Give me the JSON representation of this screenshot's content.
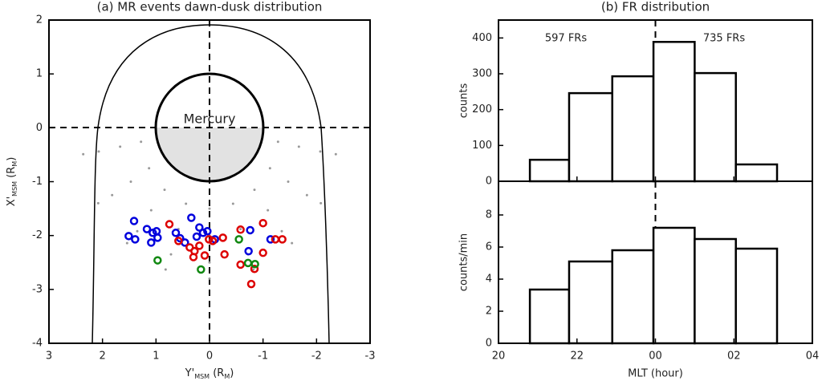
{
  "chart_data": [
    {
      "type": "scatter",
      "title": "(a) MR events dawn-dusk distribution",
      "xlabel": [
        "Y'",
        "MSM",
        " (R",
        "M",
        ")"
      ],
      "ylabel": [
        "X'",
        "MSM",
        " (R",
        "M",
        ")"
      ],
      "annotation": "Mercury",
      "xlim": [
        3,
        -3
      ],
      "xticks": [
        3,
        2,
        1,
        0,
        -1,
        -2,
        -3
      ],
      "ylim": [
        -4,
        2
      ],
      "yticks": [
        -4,
        -3,
        -2,
        -1,
        0,
        1,
        2
      ],
      "series": [
        {
          "color": "#999999",
          "marker": "dot",
          "x": [
            -1.28,
            -1.13,
            -0.84,
            -0.44,
            0,
            0.44,
            0.84,
            1.13,
            1.28,
            -1.67,
            -1.47,
            -1.09,
            -0.58,
            0,
            0.58,
            1.09,
            1.47,
            1.67,
            -2.07,
            -1.82,
            -1.35,
            -0.72,
            0,
            0.72,
            1.35,
            1.82,
            2.07,
            -2.36,
            -2.08,
            -1.54,
            -0.82,
            0,
            0.82,
            1.54,
            2.08,
            2.36
          ],
          "values": [
            -0.26,
            -0.75,
            -1.15,
            -1.41,
            -1.5,
            -1.41,
            -1.15,
            -0.75,
            -0.26,
            -0.35,
            -1.0,
            -1.53,
            -1.88,
            -2.0,
            -1.88,
            -1.53,
            -1.0,
            -0.35,
            -0.44,
            -1.25,
            -1.92,
            -2.35,
            -2.5,
            -2.35,
            -1.92,
            -1.25,
            -0.44,
            -0.49,
            -1.4,
            -2.14,
            -2.63,
            -2.8,
            -2.63,
            -2.14,
            -1.4,
            -0.49
          ]
        },
        {
          "color": "#0000dd",
          "marker": "ring",
          "x": [
            1.41,
            1.51,
            1.39,
            1.17,
            1.06,
            1.09,
            0.99,
            0.97,
            0.63,
            0.55,
            0.46,
            0.34,
            0.24,
            0.19,
            0.12,
            0.04,
            -0.1,
            -0.76,
            -0.73,
            -1.14
          ],
          "values": [
            -1.73,
            -2.01,
            -2.07,
            -1.88,
            -1.95,
            -2.13,
            -1.92,
            -2.04,
            -1.95,
            -2.05,
            -2.13,
            -1.67,
            -2.02,
            -1.85,
            -1.95,
            -1.92,
            -2.07,
            -1.9,
            -2.29,
            -2.07
          ]
        },
        {
          "color": "#dd0000",
          "marker": "ring",
          "x": [
            0.75,
            0.58,
            0.37,
            0.3,
            0.28,
            0.19,
            0.09,
            0.01,
            -0.06,
            -0.25,
            -0.28,
            -0.58,
            -0.84,
            -0.78,
            -0.58,
            -1.0,
            -1.23,
            -1.36,
            -1.0
          ],
          "values": [
            -1.79,
            -2.1,
            -2.22,
            -2.4,
            -2.29,
            -2.19,
            -2.37,
            -2.07,
            -2.1,
            -2.04,
            -2.35,
            -1.89,
            -2.62,
            -2.9,
            -2.54,
            -1.77,
            -2.07,
            -2.07,
            -2.32
          ]
        },
        {
          "color": "#118811",
          "marker": "ring",
          "x": [
            0.97,
            0.16,
            -0.55,
            -0.72,
            -0.85
          ],
          "values": [
            -2.46,
            -2.63,
            -2.07,
            -2.51,
            -2.53
          ]
        }
      ]
    },
    {
      "type": "histogram",
      "title": "(b) FR distribution",
      "ylabel": "counts",
      "annotations": [
        "597 FRs",
        "735 FRs"
      ],
      "bins": [
        20.8,
        21.8,
        22.9,
        23.95,
        25,
        26.05,
        27.1
      ],
      "values": [
        60,
        246,
        293,
        389,
        302,
        47
      ],
      "ylim": [
        0,
        450
      ],
      "yticks": [
        0,
        100,
        200,
        300,
        400
      ]
    },
    {
      "type": "histogram",
      "ylabel": "counts/min",
      "xlabel": "MLT (hour)",
      "bins": [
        20.8,
        21.8,
        22.9,
        23.95,
        25,
        26.05,
        27.1
      ],
      "values": [
        3.35,
        5.1,
        5.8,
        7.2,
        6.5,
        5.9
      ],
      "ylim": [
        0,
        10.1
      ],
      "yticks": [
        0,
        2,
        4,
        6,
        8
      ],
      "xlim": [
        20,
        28
      ],
      "xticks": [
        20,
        22,
        {
          "value": 24,
          "label": "00"
        },
        {
          "value": 26,
          "label": "02"
        },
        {
          "value": 28,
          "label": "04"
        }
      ]
    }
  ]
}
